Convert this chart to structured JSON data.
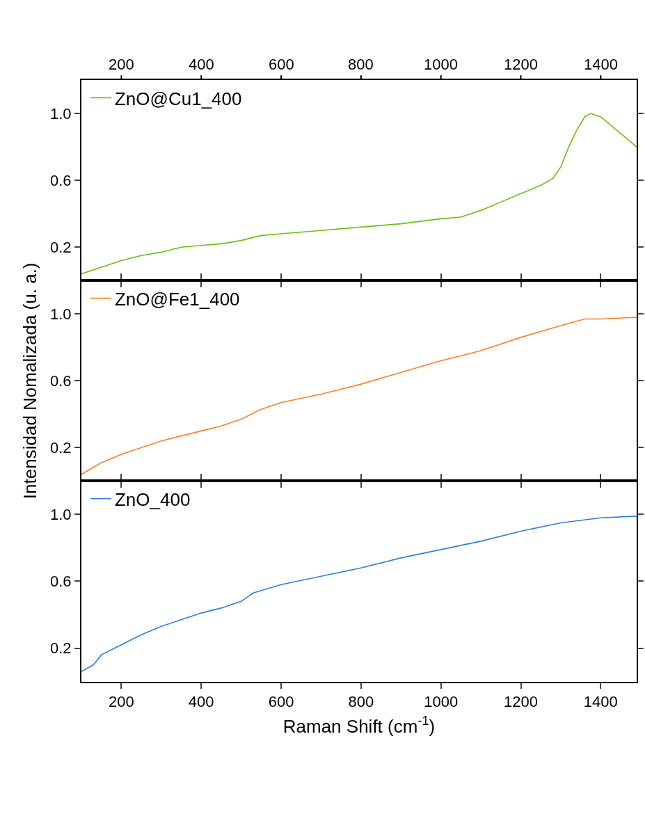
{
  "chart_data": [
    {
      "type": "line",
      "xlim": [
        100,
        1490
      ],
      "xticks": [
        200,
        400,
        600,
        800,
        1000,
        1200,
        1400
      ],
      "x2lim": [
        100,
        1490
      ],
      "x2ticks": [
        200,
        400,
        600,
        800,
        1000,
        1200,
        1400
      ],
      "tick_labels": "y",
      "ylim": [
        0,
        1.2
      ],
      "yticks": [
        {
          "value": 0.2,
          "label": "0.2"
        },
        {
          "value": 0.6,
          "label": "0.6"
        },
        {
          "value": 1.0,
          "label": "1.0"
        }
      ],
      "legend": "top left",
      "x": [
        100,
        150,
        200,
        250,
        300,
        350,
        400,
        450,
        500,
        550,
        600,
        700,
        800,
        900,
        1000,
        1050,
        1100,
        1150,
        1200,
        1250,
        1280,
        1300,
        1320,
        1340,
        1360,
        1375,
        1400,
        1440,
        1490
      ],
      "series": [
        {
          "name": "ZnO@Cu1_400",
          "color": "#6bbf10",
          "values": [
            0.04,
            0.08,
            0.12,
            0.15,
            0.17,
            0.2,
            0.21,
            0.22,
            0.24,
            0.27,
            0.28,
            0.3,
            0.32,
            0.34,
            0.37,
            0.38,
            0.42,
            0.47,
            0.52,
            0.57,
            0.61,
            0.68,
            0.8,
            0.9,
            0.98,
            1.0,
            0.98,
            0.9,
            0.8
          ]
        }
      ]
    },
    {
      "type": "line",
      "xlim": [
        100,
        1490
      ],
      "xticks": [
        200,
        400,
        600,
        800,
        1000,
        1200,
        1400
      ],
      "ylim": [
        0,
        1.2
      ],
      "yticks": [
        {
          "value": 0.2,
          "label": "0.2"
        },
        {
          "value": 0.6,
          "label": "0.6"
        },
        {
          "value": 1.0,
          "label": "1.0"
        }
      ],
      "legend": "top left",
      "tick_labels": "y",
      "ylabel": "Intensidad Nomalizada (u. a.)",
      "x": [
        100,
        150,
        200,
        300,
        400,
        450,
        500,
        550,
        600,
        700,
        800,
        900,
        1000,
        1100,
        1200,
        1300,
        1360,
        1400,
        1490
      ],
      "series": [
        {
          "name": "ZnO@Fe1_400",
          "color": "#ff7f27",
          "values": [
            0.04,
            0.11,
            0.16,
            0.24,
            0.3,
            0.33,
            0.37,
            0.43,
            0.47,
            0.52,
            0.58,
            0.65,
            0.72,
            0.78,
            0.86,
            0.93,
            0.97,
            0.97,
            0.98
          ]
        }
      ]
    },
    {
      "type": "line",
      "xlim": [
        100,
        1490
      ],
      "xticks": [
        200,
        400,
        600,
        800,
        1000,
        1200,
        1400
      ],
      "ylim": [
        0,
        1.2
      ],
      "legend": "top left",
      "xlabel": "Raman Shift (cm$^{-1}$)",
      "yticks": [
        {
          "value": 0.2,
          "label": "0.2"
        },
        {
          "value": 0.6,
          "label": "0.6"
        },
        {
          "value": 1.0,
          "label": "1.0"
        }
      ],
      "x": [
        100,
        130,
        150,
        200,
        250,
        300,
        400,
        450,
        500,
        530,
        600,
        700,
        800,
        900,
        1000,
        1100,
        1200,
        1300,
        1400,
        1490
      ],
      "series": [
        {
          "name": "ZnO_400",
          "color": "#2f7ee0",
          "values": [
            0.06,
            0.1,
            0.16,
            0.22,
            0.28,
            0.33,
            0.41,
            0.44,
            0.48,
            0.53,
            0.58,
            0.63,
            0.68,
            0.74,
            0.79,
            0.84,
            0.9,
            0.95,
            0.98,
            0.99
          ]
        }
      ]
    }
  ]
}
